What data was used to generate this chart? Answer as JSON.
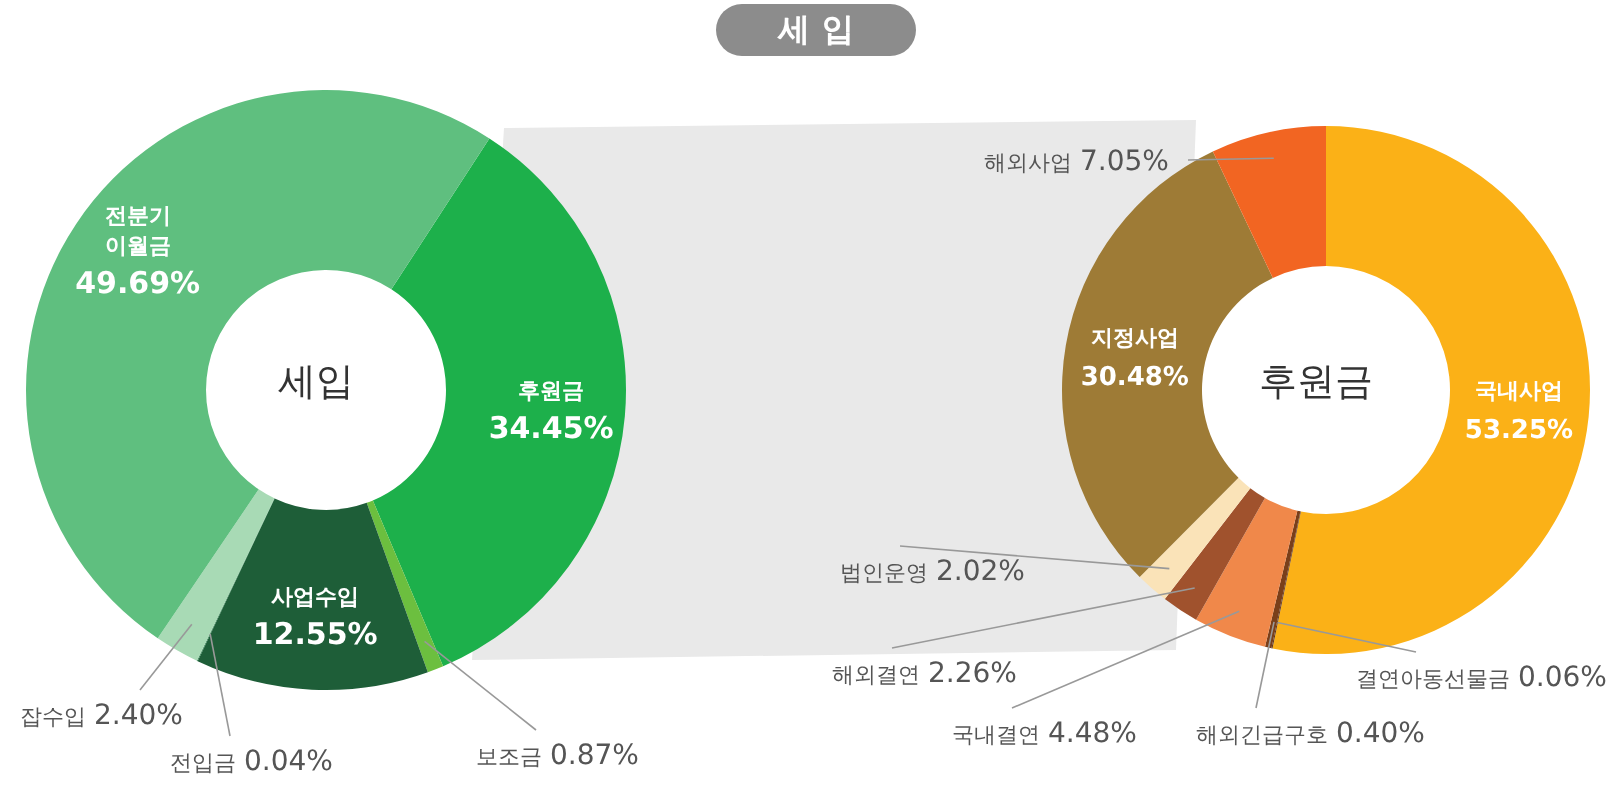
{
  "chart_data": [
    {
      "type": "donut",
      "title": "세입",
      "annotations": [
        "세 입"
      ],
      "categories": [
        "후원금",
        "보조금",
        "사업수입",
        "전입금",
        "잡수입",
        "전분기 이월금"
      ],
      "values": [
        34.45,
        0.87,
        12.55,
        0.04,
        2.4,
        49.69
      ],
      "value_labels": [
        "34.45%",
        "0.87%",
        "12.55%",
        "0.04%",
        "2.40%",
        "49.69%"
      ],
      "colors": [
        "#1db04b",
        "#6cbf3f",
        "#1e5e38",
        "#2e7d4f",
        "#a8dab5",
        "#5fbf7f"
      ]
    },
    {
      "type": "donut",
      "title": "후원금",
      "categories": [
        "국내사업",
        "결연아동선물금",
        "해외긴급구호",
        "국내결연",
        "해외결연",
        "법인운영",
        "지정사업",
        "해외사업"
      ],
      "values": [
        53.25,
        0.06,
        0.4,
        4.48,
        2.26,
        2.02,
        30.48,
        7.05
      ],
      "value_labels": [
        "53.25%",
        "0.06%",
        "0.40%",
        "4.48%",
        "2.26%",
        "2.02%",
        "30.48%",
        "7.05%"
      ],
      "colors": [
        "#fbb117",
        "#5a2e12",
        "#7a3f1a",
        "#f0884a",
        "#a0522d",
        "#fae3b8",
        "#9e7b36",
        "#f26522"
      ]
    }
  ]
}
